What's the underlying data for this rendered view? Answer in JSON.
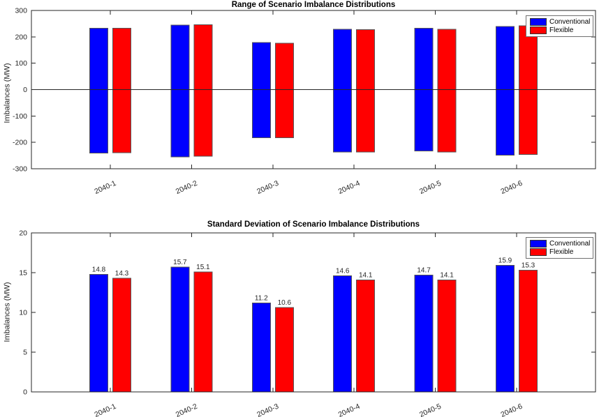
{
  "colors": {
    "conventional": "#0000ff",
    "flexible": "#ff0000",
    "axis": "#262626",
    "bar_edge": "#555555",
    "zero_line": "#262626",
    "legend_border": "#707070",
    "background": "#ffffff"
  },
  "legend": {
    "position": "top-right",
    "items": [
      {
        "label": "Conventional",
        "color": "#0000ff"
      },
      {
        "label": "Flexible",
        "color": "#ff0000"
      }
    ]
  },
  "chart_data": [
    {
      "type": "bar",
      "subtype": "floating-range",
      "title": "Range of Scenario Imbalance Distributions",
      "xlabel": "",
      "ylabel": "Imbalances (MW)",
      "ylim": [
        -300,
        300
      ],
      "yticks": [
        -300,
        -200,
        -100,
        0,
        100,
        200,
        300
      ],
      "categories": [
        "2040-1",
        "2040-2",
        "2040-3",
        "2040-4",
        "2040-5",
        "2040-6"
      ],
      "series": [
        {
          "name": "Conventional",
          "color_key": "conventional",
          "ranges": [
            [
              -240,
              233
            ],
            [
              -255,
              244
            ],
            [
              -183,
              178
            ],
            [
              -236,
              229
            ],
            [
              -233,
              233
            ],
            [
              -248,
              239
            ]
          ]
        },
        {
          "name": "Flexible",
          "color_key": "flexible",
          "ranges": [
            [
              -239,
              233
            ],
            [
              -253,
              246
            ],
            [
              -182,
              176
            ],
            [
              -236,
              227
            ],
            [
              -237,
              228
            ],
            [
              -246,
              242
            ]
          ]
        }
      ],
      "grid": false,
      "zero_line": true,
      "value_labels": false,
      "legend_position": "top-right"
    },
    {
      "type": "bar",
      "title": "Standard Deviation of Scenario Imbalance Distributions",
      "xlabel": "",
      "ylabel": "Imbalances (MW)",
      "ylim": [
        0,
        20
      ],
      "yticks": [
        0,
        5,
        10,
        15,
        20
      ],
      "categories": [
        "2040-1",
        "2040-2",
        "2040-3",
        "2040-4",
        "2040-5",
        "2040-6"
      ],
      "series": [
        {
          "name": "Conventional",
          "color_key": "conventional",
          "values": [
            14.8,
            15.7,
            11.2,
            14.6,
            14.7,
            15.9
          ]
        },
        {
          "name": "Flexible",
          "color_key": "flexible",
          "values": [
            14.3,
            15.1,
            10.6,
            14.1,
            14.1,
            15.3
          ]
        }
      ],
      "grid": false,
      "zero_line": false,
      "value_labels": true,
      "legend_position": "top-right"
    }
  ]
}
